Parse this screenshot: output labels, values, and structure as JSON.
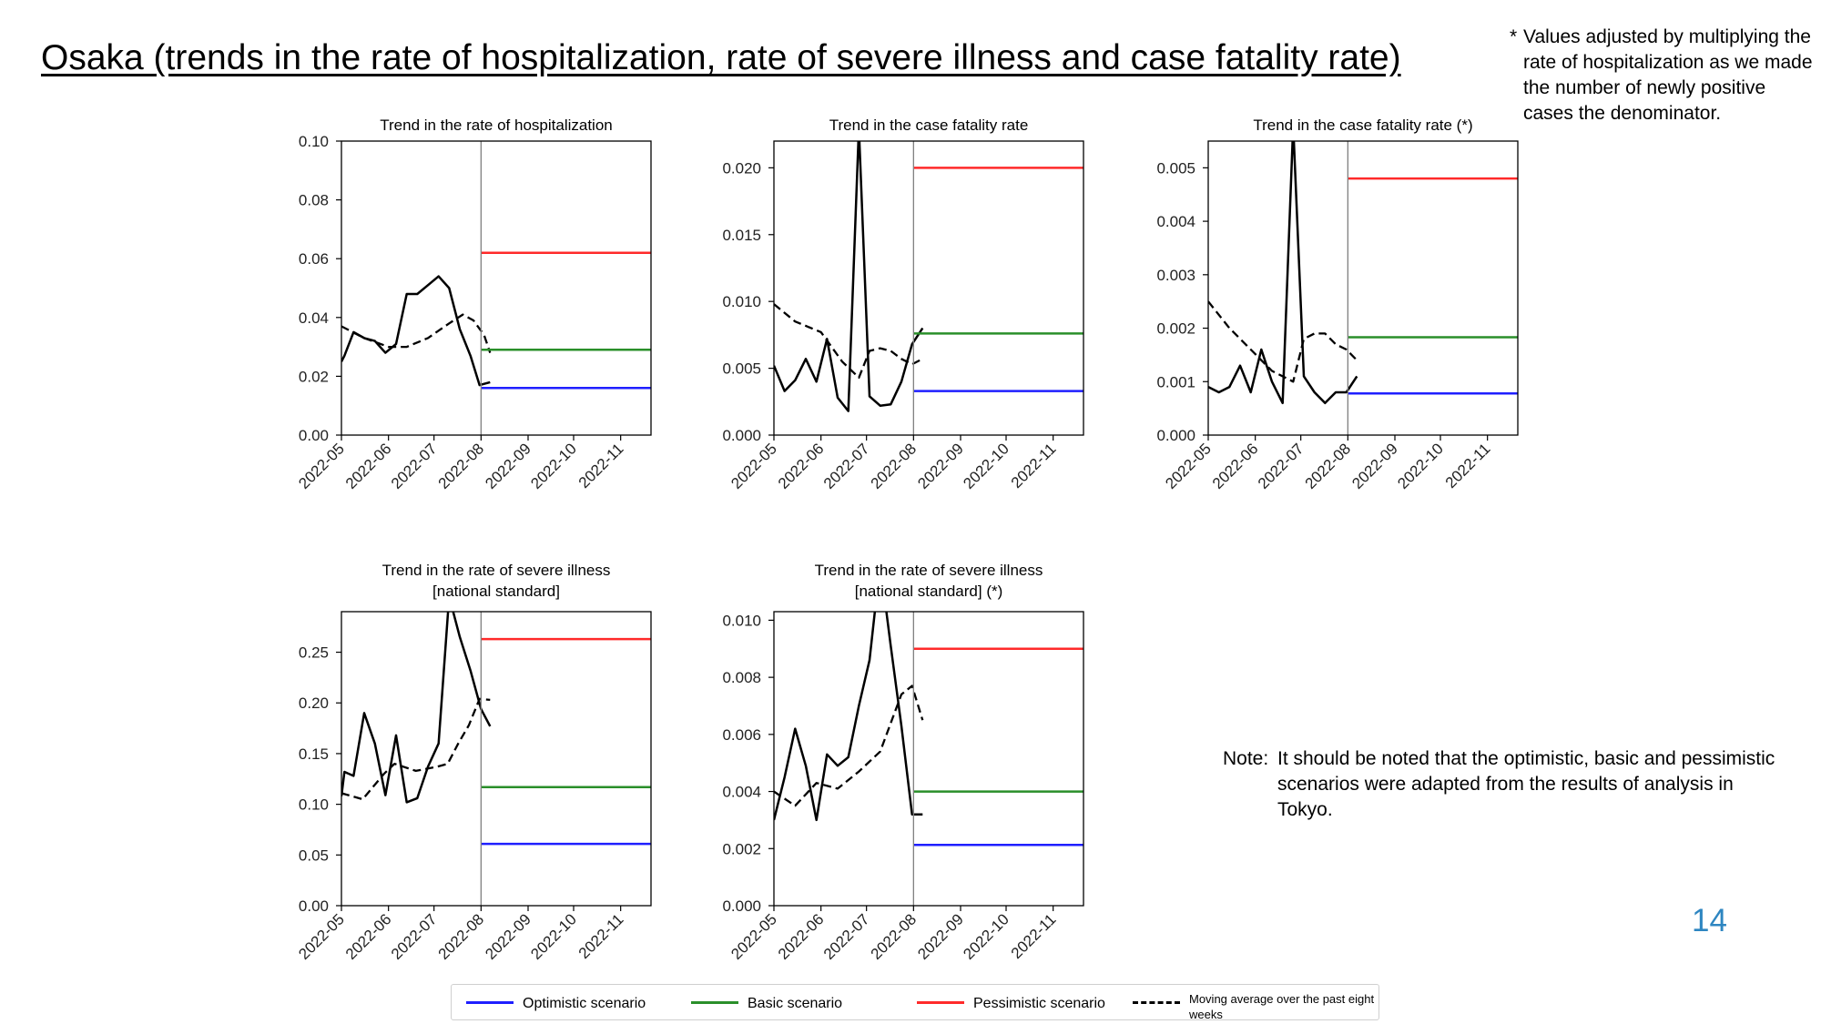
{
  "page": {
    "title": "Osaka (trends in the rate of hospitalization, rate of severe illness and case fatality rate)",
    "footnote_mark": "*",
    "footnote": "Values adjusted by multiplying the rate of hospitalization as we made the number of newly positive cases the denominator.",
    "note_label": "Note:",
    "note": "It should be noted that the optimistic, basic and pessimistic scenarios were adapted from the results of analysis in Tokyo.",
    "page_number": "14"
  },
  "legend": {
    "items": [
      {
        "label": "Optimistic scenario",
        "color": "#1f1fff",
        "style": "solid"
      },
      {
        "label": "Basic scenario",
        "color": "#2a8f2a",
        "style": "solid"
      },
      {
        "label": "Pessimistic scenario",
        "color": "#ff2a2a",
        "style": "solid"
      },
      {
        "label": "Moving average over the past eight weeks",
        "color": "#000000",
        "style": "dashed"
      }
    ]
  },
  "colors": {
    "optimistic": "#1f1fff",
    "basic": "#2a8f2a",
    "pessimistic": "#ff2a2a",
    "actual": "#000000",
    "divider": "#808080"
  },
  "chart_data": [
    {
      "type": "line",
      "title": "Trend in the rate of hospitalization",
      "xlabel": "",
      "ylabel": "",
      "x_ticks": [
        "2022-05",
        "2022-06",
        "2022-07",
        "2022-08",
        "2022-09",
        "2022-10",
        "2022-11"
      ],
      "xlim": [
        "2022-05-01",
        "2022-11-21"
      ],
      "ylim": [
        0,
        0.1
      ],
      "y_ticks": [
        "0.00",
        "0.02",
        "0.04",
        "0.06",
        "0.08",
        "0.10"
      ],
      "forecast_start": "2022-08-01",
      "series": [
        {
          "key": "actual",
          "style": "solid",
          "points": [
            [
              "2022-05-01",
              0.025
            ],
            [
              "2022-05-03",
              0.027
            ],
            [
              "2022-05-09",
              0.035
            ],
            [
              "2022-05-16",
              0.033
            ],
            [
              "2022-05-23",
              0.032
            ],
            [
              "2022-05-30",
              0.028
            ],
            [
              "2022-06-06",
              0.031
            ],
            [
              "2022-06-13",
              0.048
            ],
            [
              "2022-06-20",
              0.048
            ],
            [
              "2022-06-27",
              0.051
            ],
            [
              "2022-07-04",
              0.054
            ],
            [
              "2022-07-11",
              0.05
            ],
            [
              "2022-07-18",
              0.036
            ],
            [
              "2022-07-25",
              0.027
            ],
            [
              "2022-07-31",
              0.017
            ],
            [
              "2022-08-07",
              0.018
            ]
          ]
        },
        {
          "key": "moving_average",
          "style": "dashed",
          "points": [
            [
              "2022-05-01",
              0.037
            ],
            [
              "2022-05-16",
              0.033
            ],
            [
              "2022-06-01",
              0.03
            ],
            [
              "2022-06-13",
              0.03
            ],
            [
              "2022-06-27",
              0.033
            ],
            [
              "2022-07-11",
              0.038
            ],
            [
              "2022-07-20",
              0.041
            ],
            [
              "2022-07-27",
              0.039
            ],
            [
              "2022-08-03",
              0.034
            ],
            [
              "2022-08-07",
              0.028
            ]
          ]
        },
        {
          "key": "pessimistic",
          "style": "solid",
          "points": [
            [
              "2022-08-01",
              0.062
            ],
            [
              "2022-11-21",
              0.062
            ]
          ]
        },
        {
          "key": "basic",
          "style": "solid",
          "points": [
            [
              "2022-08-01",
              0.029
            ],
            [
              "2022-11-21",
              0.029
            ]
          ]
        },
        {
          "key": "optimistic",
          "style": "solid",
          "points": [
            [
              "2022-08-01",
              0.016
            ],
            [
              "2022-11-21",
              0.016
            ]
          ]
        }
      ]
    },
    {
      "type": "line",
      "title": "Trend in the case fatality rate",
      "xlabel": "",
      "ylabel": "",
      "x_ticks": [
        "2022-05",
        "2022-06",
        "2022-07",
        "2022-08",
        "2022-09",
        "2022-10",
        "2022-11"
      ],
      "xlim": [
        "2022-05-01",
        "2022-11-21"
      ],
      "ylim": [
        0,
        0.022
      ],
      "y_ticks": [
        "0.000",
        "0.005",
        "0.010",
        "0.015",
        "0.020"
      ],
      "forecast_start": "2022-08-01",
      "series": [
        {
          "key": "actual",
          "style": "solid",
          "points": [
            [
              "2022-05-01",
              0.0052
            ],
            [
              "2022-05-08",
              0.0033
            ],
            [
              "2022-05-15",
              0.0041
            ],
            [
              "2022-05-22",
              0.0057
            ],
            [
              "2022-05-29",
              0.004
            ],
            [
              "2022-06-05",
              0.0072
            ],
            [
              "2022-06-12",
              0.0028
            ],
            [
              "2022-06-19",
              0.0018
            ],
            [
              "2022-06-26",
              0.023
            ],
            [
              "2022-07-03",
              0.0029
            ],
            [
              "2022-07-10",
              0.0022
            ],
            [
              "2022-07-17",
              0.0023
            ],
            [
              "2022-07-24",
              0.004
            ],
            [
              "2022-07-31",
              0.0068
            ],
            [
              "2022-08-07",
              0.008
            ]
          ]
        },
        {
          "key": "moving_average",
          "style": "dashed",
          "points": [
            [
              "2022-05-01",
              0.0098
            ],
            [
              "2022-05-15",
              0.0085
            ],
            [
              "2022-06-01",
              0.0077
            ],
            [
              "2022-06-15",
              0.0055
            ],
            [
              "2022-06-26",
              0.0043
            ],
            [
              "2022-07-03",
              0.0063
            ],
            [
              "2022-07-10",
              0.0065
            ],
            [
              "2022-07-17",
              0.0063
            ],
            [
              "2022-07-24",
              0.0057
            ],
            [
              "2022-07-31",
              0.0053
            ],
            [
              "2022-08-07",
              0.0057
            ]
          ]
        },
        {
          "key": "pessimistic",
          "style": "solid",
          "points": [
            [
              "2022-08-01",
              0.02
            ],
            [
              "2022-11-21",
              0.02
            ]
          ]
        },
        {
          "key": "basic",
          "style": "solid",
          "points": [
            [
              "2022-08-01",
              0.0076
            ],
            [
              "2022-11-21",
              0.0076
            ]
          ]
        },
        {
          "key": "optimistic",
          "style": "solid",
          "points": [
            [
              "2022-08-01",
              0.0033
            ],
            [
              "2022-11-21",
              0.0033
            ]
          ]
        }
      ]
    },
    {
      "type": "line",
      "title": "Trend in the case fatality rate (*)",
      "xlabel": "",
      "ylabel": "",
      "x_ticks": [
        "2022-05",
        "2022-06",
        "2022-07",
        "2022-08",
        "2022-09",
        "2022-10",
        "2022-11"
      ],
      "xlim": [
        "2022-05-01",
        "2022-11-21"
      ],
      "ylim": [
        0,
        0.0055
      ],
      "y_ticks": [
        "0.000",
        "0.001",
        "0.002",
        "0.003",
        "0.004",
        "0.005"
      ],
      "forecast_start": "2022-08-01",
      "series": [
        {
          "key": "actual",
          "style": "solid",
          "points": [
            [
              "2022-05-01",
              0.0009
            ],
            [
              "2022-05-08",
              0.0008
            ],
            [
              "2022-05-15",
              0.0009
            ],
            [
              "2022-05-22",
              0.0013
            ],
            [
              "2022-05-29",
              0.0008
            ],
            [
              "2022-06-05",
              0.0016
            ],
            [
              "2022-06-12",
              0.001
            ],
            [
              "2022-06-19",
              0.0006
            ],
            [
              "2022-06-26",
              0.0058
            ],
            [
              "2022-07-03",
              0.0011
            ],
            [
              "2022-07-10",
              0.0008
            ],
            [
              "2022-07-17",
              0.0006
            ],
            [
              "2022-07-24",
              0.0008
            ],
            [
              "2022-07-31",
              0.0008
            ],
            [
              "2022-08-07",
              0.0011
            ]
          ]
        },
        {
          "key": "moving_average",
          "style": "dashed",
          "points": [
            [
              "2022-05-01",
              0.0025
            ],
            [
              "2022-05-15",
              0.002
            ],
            [
              "2022-05-29",
              0.0016
            ],
            [
              "2022-06-12",
              0.0012
            ],
            [
              "2022-06-26",
              0.001
            ],
            [
              "2022-07-03",
              0.0018
            ],
            [
              "2022-07-10",
              0.0019
            ],
            [
              "2022-07-17",
              0.0019
            ],
            [
              "2022-07-24",
              0.0017
            ],
            [
              "2022-07-31",
              0.0016
            ],
            [
              "2022-08-07",
              0.0014
            ]
          ]
        },
        {
          "key": "pessimistic",
          "style": "solid",
          "points": [
            [
              "2022-08-01",
              0.0048
            ],
            [
              "2022-11-21",
              0.0048
            ]
          ]
        },
        {
          "key": "basic",
          "style": "solid",
          "points": [
            [
              "2022-08-01",
              0.00183
            ],
            [
              "2022-11-21",
              0.00183
            ]
          ]
        },
        {
          "key": "optimistic",
          "style": "solid",
          "points": [
            [
              "2022-08-01",
              0.00078
            ],
            [
              "2022-11-21",
              0.00078
            ]
          ]
        }
      ]
    },
    {
      "type": "line",
      "title": "Trend in the rate of severe illness [national standard]",
      "xlabel": "",
      "ylabel": "",
      "x_ticks": [
        "2022-05",
        "2022-06",
        "2022-07",
        "2022-08",
        "2022-09",
        "2022-10",
        "2022-11"
      ],
      "xlim": [
        "2022-05-01",
        "2022-11-21"
      ],
      "ylim": [
        0,
        0.29
      ],
      "y_ticks": [
        "0.00",
        "0.05",
        "0.10",
        "0.15",
        "0.20",
        "0.25"
      ],
      "forecast_start": "2022-08-01",
      "series": [
        {
          "key": "actual",
          "style": "solid",
          "points": [
            [
              "2022-05-01",
              0.108
            ],
            [
              "2022-05-03",
              0.132
            ],
            [
              "2022-05-09",
              0.128
            ],
            [
              "2022-05-16",
              0.19
            ],
            [
              "2022-05-23",
              0.16
            ],
            [
              "2022-05-30",
              0.109
            ],
            [
              "2022-06-06",
              0.168
            ],
            [
              "2022-06-13",
              0.102
            ],
            [
              "2022-06-20",
              0.106
            ],
            [
              "2022-06-27",
              0.137
            ],
            [
              "2022-07-04",
              0.16
            ],
            [
              "2022-07-11",
              0.305
            ],
            [
              "2022-07-18",
              0.265
            ],
            [
              "2022-07-25",
              0.232
            ],
            [
              "2022-08-01",
              0.194
            ],
            [
              "2022-08-07",
              0.177
            ]
          ]
        },
        {
          "key": "moving_average",
          "style": "dashed",
          "points": [
            [
              "2022-05-01",
              0.111
            ],
            [
              "2022-05-15",
              0.105
            ],
            [
              "2022-05-29",
              0.13
            ],
            [
              "2022-06-05",
              0.14
            ],
            [
              "2022-06-19",
              0.133
            ],
            [
              "2022-07-03",
              0.137
            ],
            [
              "2022-07-10",
              0.14
            ],
            [
              "2022-07-17",
              0.16
            ],
            [
              "2022-07-24",
              0.178
            ],
            [
              "2022-07-31",
              0.204
            ],
            [
              "2022-08-07",
              0.203
            ]
          ]
        },
        {
          "key": "pessimistic",
          "style": "solid",
          "points": [
            [
              "2022-08-01",
              0.263
            ],
            [
              "2022-11-21",
              0.263
            ]
          ]
        },
        {
          "key": "basic",
          "style": "solid",
          "points": [
            [
              "2022-08-01",
              0.117
            ],
            [
              "2022-11-21",
              0.117
            ]
          ]
        },
        {
          "key": "optimistic",
          "style": "solid",
          "points": [
            [
              "2022-08-01",
              0.061
            ],
            [
              "2022-11-21",
              0.061
            ]
          ]
        }
      ]
    },
    {
      "type": "line",
      "title": "Trend in the rate of severe illness [national standard] (*)",
      "xlabel": "",
      "ylabel": "",
      "x_ticks": [
        "2022-05",
        "2022-06",
        "2022-07",
        "2022-08",
        "2022-09",
        "2022-10",
        "2022-11"
      ],
      "xlim": [
        "2022-05-01",
        "2022-11-21"
      ],
      "ylim": [
        0,
        0.0103
      ],
      "y_ticks": [
        "0.000",
        "0.002",
        "0.004",
        "0.006",
        "0.008",
        "0.010"
      ],
      "forecast_start": "2022-08-01",
      "series": [
        {
          "key": "actual",
          "style": "solid",
          "points": [
            [
              "2022-05-01",
              0.003
            ],
            [
              "2022-05-08",
              0.0045
            ],
            [
              "2022-05-15",
              0.0062
            ],
            [
              "2022-05-22",
              0.0049
            ],
            [
              "2022-05-29",
              0.003
            ],
            [
              "2022-06-05",
              0.0053
            ],
            [
              "2022-06-12",
              0.0049
            ],
            [
              "2022-06-19",
              0.0052
            ],
            [
              "2022-06-26",
              0.007
            ],
            [
              "2022-07-03",
              0.0086
            ],
            [
              "2022-07-10",
              0.012
            ],
            [
              "2022-07-17",
              0.0091
            ],
            [
              "2022-07-24",
              0.0063
            ],
            [
              "2022-07-31",
              0.0032
            ],
            [
              "2022-08-07",
              0.0032
            ]
          ]
        },
        {
          "key": "moving_average",
          "style": "dashed",
          "points": [
            [
              "2022-05-01",
              0.004
            ],
            [
              "2022-05-15",
              0.0035
            ],
            [
              "2022-05-29",
              0.0043
            ],
            [
              "2022-06-12",
              0.0041
            ],
            [
              "2022-06-26",
              0.0047
            ],
            [
              "2022-07-10",
              0.0054
            ],
            [
              "2022-07-24",
              0.0074
            ],
            [
              "2022-07-31",
              0.0077
            ],
            [
              "2022-08-07",
              0.0065
            ]
          ]
        },
        {
          "key": "pessimistic",
          "style": "solid",
          "points": [
            [
              "2022-08-01",
              0.009
            ],
            [
              "2022-11-21",
              0.009
            ]
          ]
        },
        {
          "key": "basic",
          "style": "solid",
          "points": [
            [
              "2022-08-01",
              0.004
            ],
            [
              "2022-11-21",
              0.004
            ]
          ]
        },
        {
          "key": "optimistic",
          "style": "solid",
          "points": [
            [
              "2022-08-01",
              0.00213
            ],
            [
              "2022-11-21",
              0.00213
            ]
          ]
        }
      ]
    }
  ]
}
